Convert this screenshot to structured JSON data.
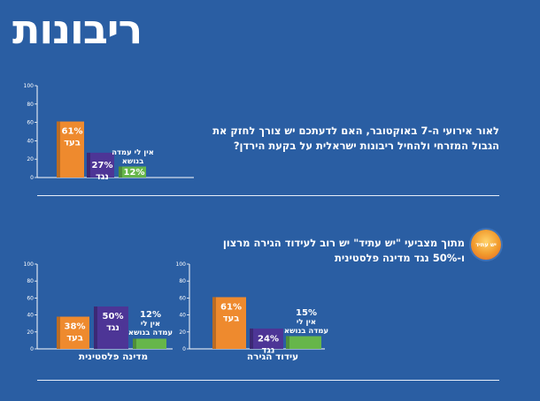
{
  "page": {
    "title": "ריבונות",
    "question1": "לאור אירועי ה-7 באוקטובר, האם לדעתכם יש צורך לחזק את הגבול המזרחי ולהחיל ריבונות ישראלית על בקעת הירדן?",
    "question2": "מתוך מצביעי \"יש עתיד\" יש רוב לעידוד הגירה מרצון ו-50% נגד מדינה פלסטינית",
    "logo_text": "יש עתיד"
  },
  "colors": {
    "background": "#2a5ea3",
    "orange": "#ee8a2e",
    "purple": "#4d3596",
    "green": "#66b64a"
  },
  "chart_data": [
    {
      "type": "bar",
      "ylim": [
        0,
        100
      ],
      "yticks": [
        0,
        20,
        40,
        60,
        80,
        100
      ],
      "xlabel": "",
      "categories": [
        "בעד",
        "נגד",
        "אין לי עמדה בנושא"
      ],
      "values": [
        61,
        27,
        12
      ],
      "labels": [
        [
          "61%",
          "בעד"
        ],
        [
          "27%",
          "נגד"
        ],
        [
          "12%"
        ]
      ],
      "extra_labels": [
        [
          "אין לי עמדה",
          "בנושא"
        ]
      ]
    },
    {
      "type": "bar",
      "ylim": [
        0,
        100
      ],
      "yticks": [
        0,
        20,
        40,
        60,
        80,
        100
      ],
      "xlabel": "מדינה פלסטינית",
      "categories": [
        "בעד",
        "נגד",
        "אין לי עמדה בנושא"
      ],
      "values": [
        38,
        50,
        12
      ],
      "labels": [
        [
          "38%",
          "בעד"
        ],
        [
          "50%",
          "נגד"
        ],
        []
      ],
      "extra_labels": [
        [
          "12%",
          "אין לי",
          "עמדה בנושא"
        ]
      ]
    },
    {
      "type": "bar",
      "ylim": [
        0,
        100
      ],
      "yticks": [
        0,
        20,
        40,
        60,
        80,
        100
      ],
      "xlabel": "עידוד הגירה",
      "categories": [
        "בעד",
        "נגד",
        "אין לי עמדה בנושא"
      ],
      "values": [
        61,
        24,
        15
      ],
      "labels": [
        [
          "61%",
          "בעד"
        ],
        [
          "24%",
          "נגד"
        ],
        []
      ],
      "extra_labels": [
        [
          "15%",
          "אין לי",
          "עמדה בנושא"
        ]
      ]
    }
  ]
}
